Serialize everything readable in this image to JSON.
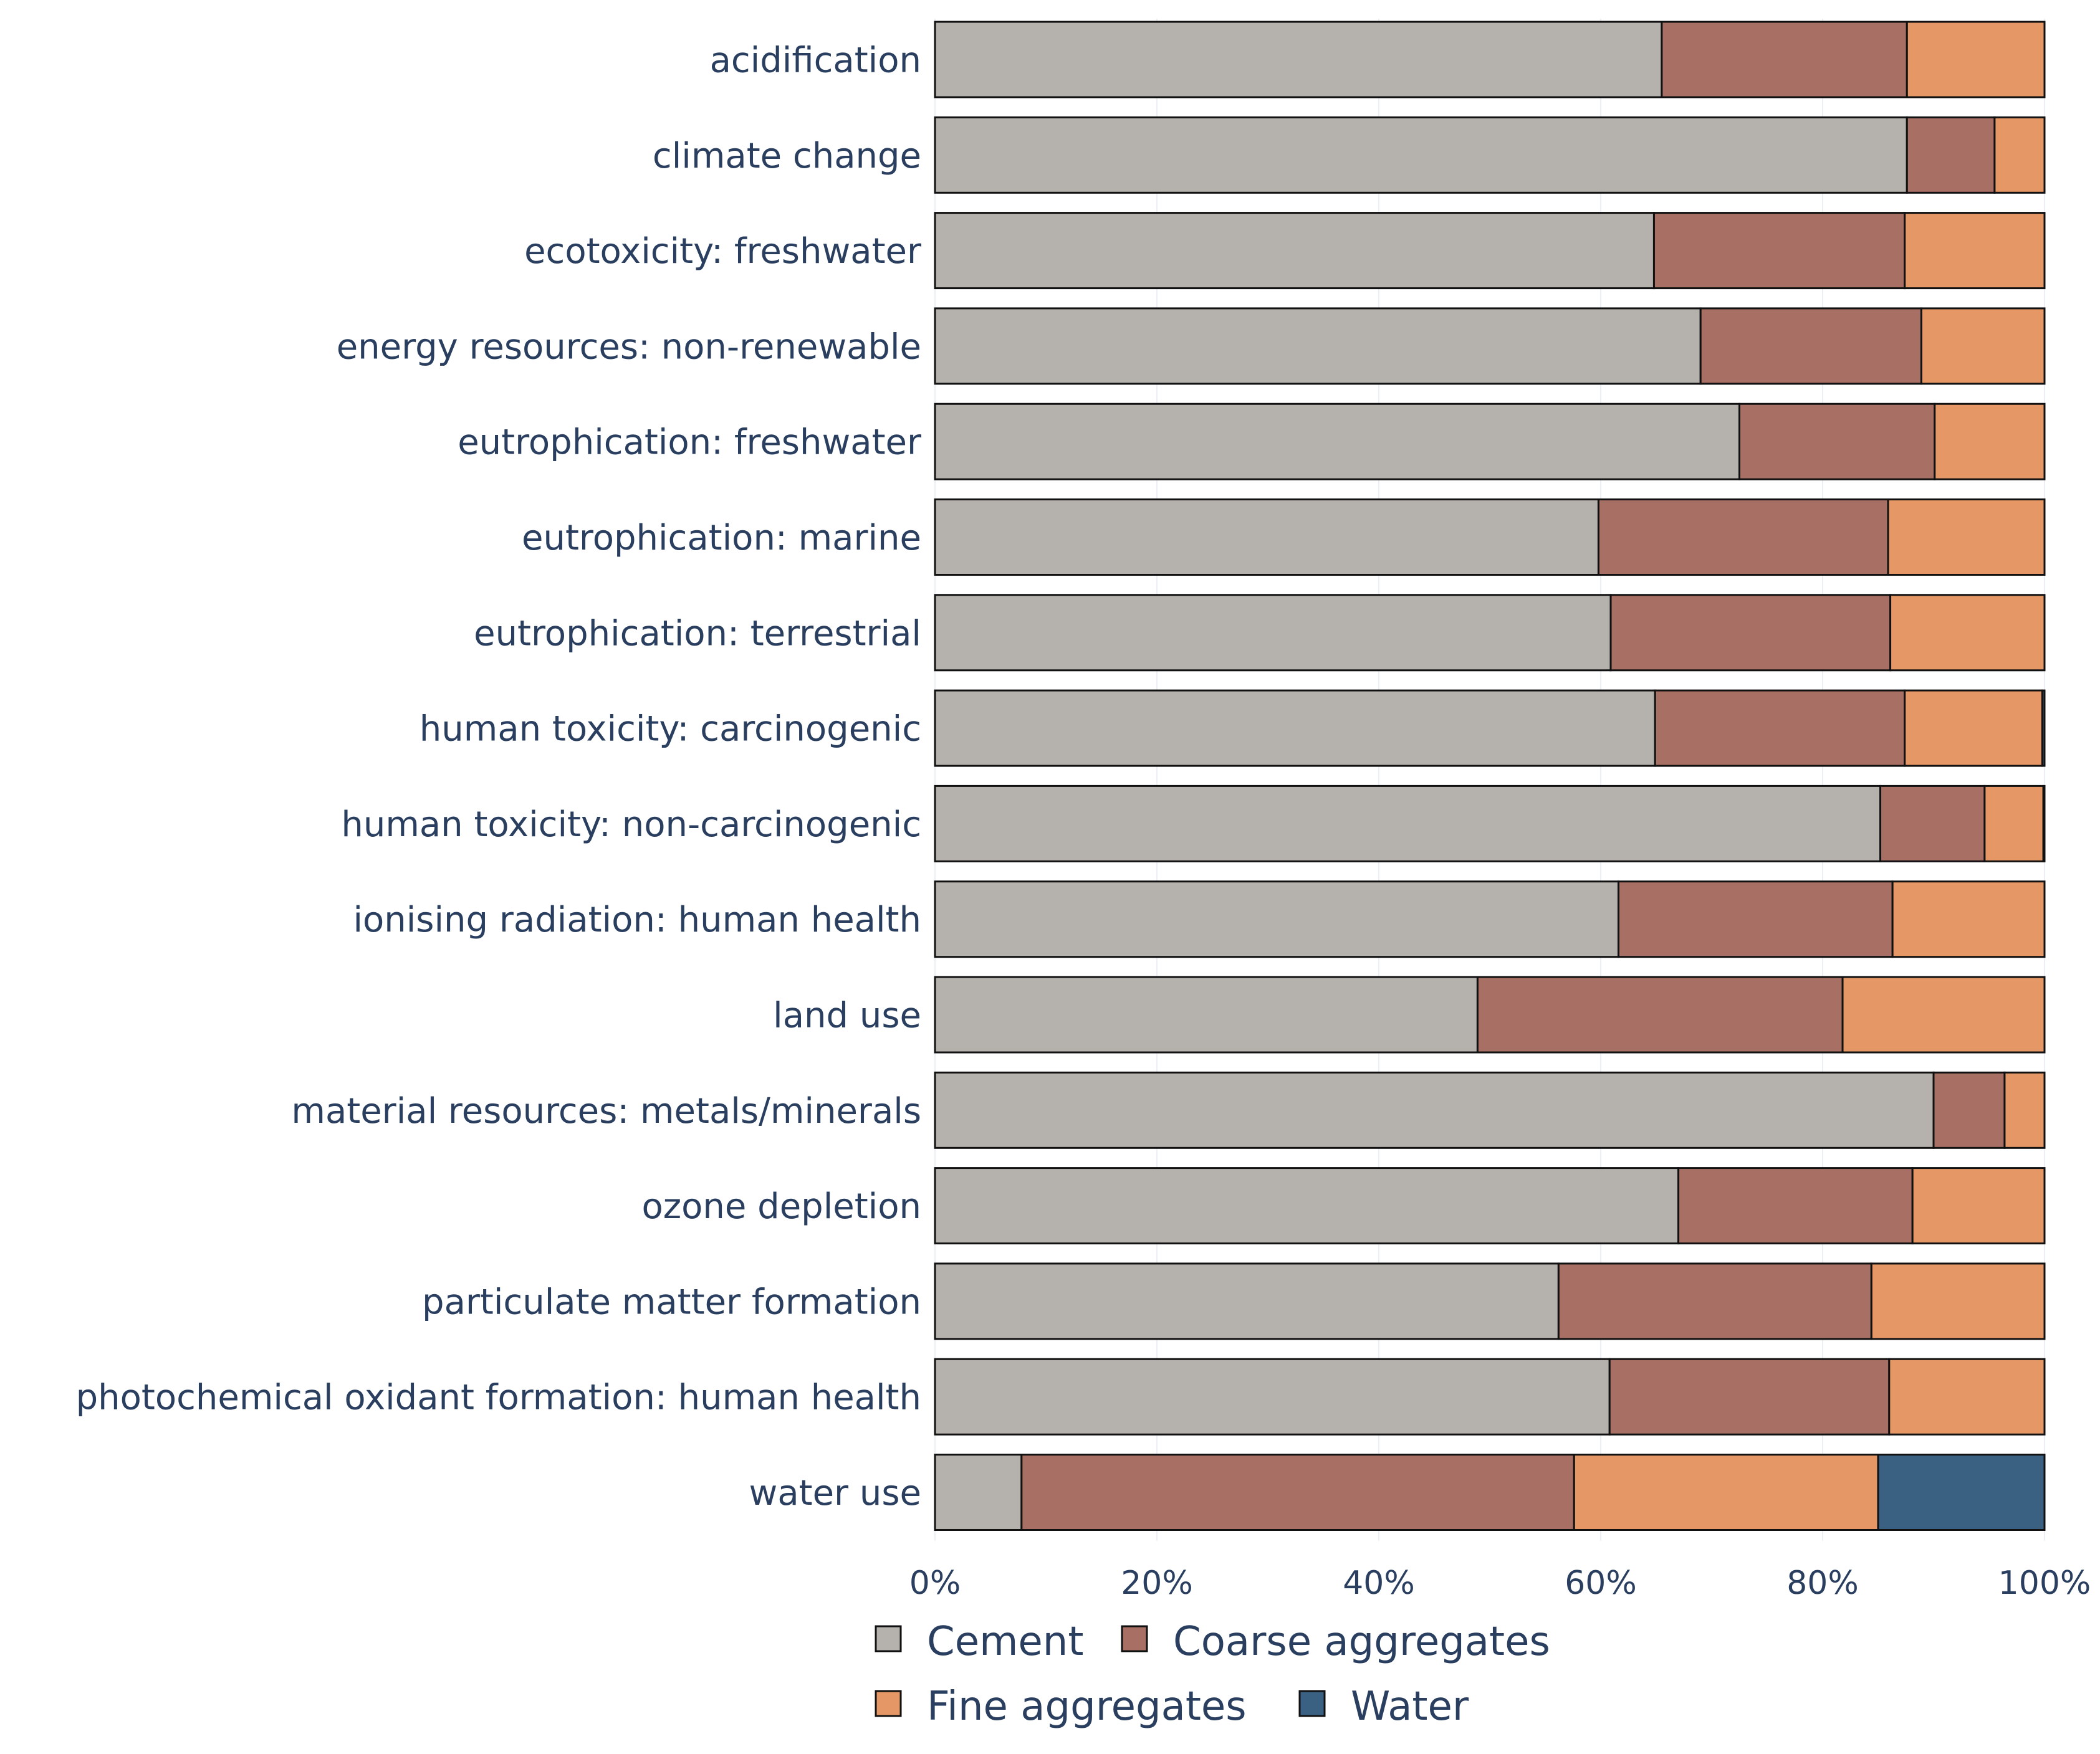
{
  "chart_data": {
    "type": "bar",
    "orientation": "horizontal",
    "stacked": true,
    "categories": [
      "acidification",
      "climate change",
      "ecotoxicity: freshwater",
      "energy resources: non-renewable",
      "eutrophication: freshwater",
      "eutrophication: marine",
      "eutrophication: terrestrial",
      "human toxicity: carcinogenic",
      "human toxicity: non-carcinogenic",
      "ionising radiation: human health",
      "land use",
      "material resources: metals/minerals",
      "ozone depletion",
      "particulate matter formation",
      "photochemical oxidant formation: human health",
      "water use"
    ],
    "series": [
      {
        "name": "Cement",
        "color": "#b5b1ad",
        "values": [
          65.5,
          87.6,
          64.8,
          69.0,
          72.5,
          59.8,
          60.9,
          64.9,
          85.2,
          61.6,
          48.9,
          90.0,
          67.0,
          56.2,
          60.8,
          7.8
        ]
      },
      {
        "name": "Coarse aggregates",
        "color": "#a87064",
        "values": [
          22.1,
          7.9,
          22.6,
          19.9,
          17.6,
          26.1,
          25.2,
          22.5,
          9.4,
          24.7,
          32.9,
          6.4,
          21.1,
          28.2,
          25.2,
          49.8
        ]
      },
      {
        "name": "Fine aggregates",
        "color": "#e59866",
        "values": [
          12.4,
          4.5,
          12.6,
          11.1,
          9.9,
          14.1,
          13.9,
          12.4,
          5.3,
          13.7,
          18.2,
          3.6,
          11.9,
          15.6,
          14.0,
          27.4
        ]
      },
      {
        "name": "Water",
        "color": "#3b6182",
        "values": [
          0,
          0,
          0,
          0,
          0,
          0,
          0,
          0.2,
          0.1,
          0,
          0,
          0,
          0,
          0,
          0,
          15.0
        ]
      }
    ],
    "x_ticks": [
      "0%",
      "20%",
      "40%",
      "60%",
      "80%",
      "100%"
    ],
    "xlim": [
      0,
      100
    ],
    "xlabel": "",
    "ylabel": "",
    "title": "",
    "grid": true,
    "legend_position": "bottom",
    "legend": [
      "Cement",
      "Coarse aggregates",
      "Fine aggregates",
      "Water"
    ]
  }
}
